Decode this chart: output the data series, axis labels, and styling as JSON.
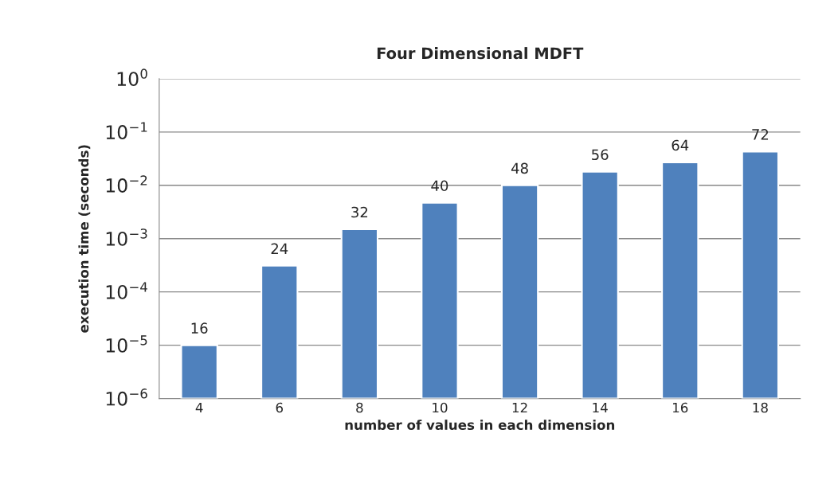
{
  "chart_data": {
    "type": "bar",
    "title": "Four Dimensional MDFT",
    "xlabel": "number of values in each dimension",
    "ylabel": "execution time (seconds)",
    "categories": [
      "4",
      "6",
      "8",
      "10",
      "12",
      "14",
      "16",
      "18"
    ],
    "values": [
      1e-05,
      0.00031,
      0.0015,
      0.0047,
      0.01,
      0.018,
      0.027,
      0.043
    ],
    "annotations": [
      {
        "text": "16",
        "x": "4",
        "y": 1e-05
      },
      {
        "text": "24",
        "x": "6",
        "y": 0.00031
      },
      {
        "text": "32",
        "x": "8",
        "y": 0.0015
      },
      {
        "text": "40",
        "x": "10",
        "y": 0.0047
      },
      {
        "text": "48",
        "x": "12",
        "y": 0.01
      },
      {
        "text": "56",
        "x": "14",
        "y": 0.018
      },
      {
        "text": "64",
        "x": "16",
        "y": 0.027
      },
      {
        "text": "72",
        "x": "18",
        "y": 0.043
      }
    ],
    "color": "#4f81bd",
    "log": "y",
    "ylim": [
      1e-06,
      1
    ],
    "yticks": [
      {
        "value": 1e-06,
        "label": "10$^{−6}$"
      },
      {
        "value": 1e-05,
        "label": "10$^{−5}$"
      },
      {
        "value": 0.0001,
        "label": "10$^{−4}$"
      },
      {
        "value": 0.001,
        "label": "10$^{−3}$"
      },
      {
        "value": 0.01,
        "label": "10$^{−2}$"
      },
      {
        "value": 0.1,
        "label": "10$^{−1}$"
      },
      {
        "value": 1,
        "label": "10$^{0}$"
      }
    ],
    "grid": "y"
  }
}
